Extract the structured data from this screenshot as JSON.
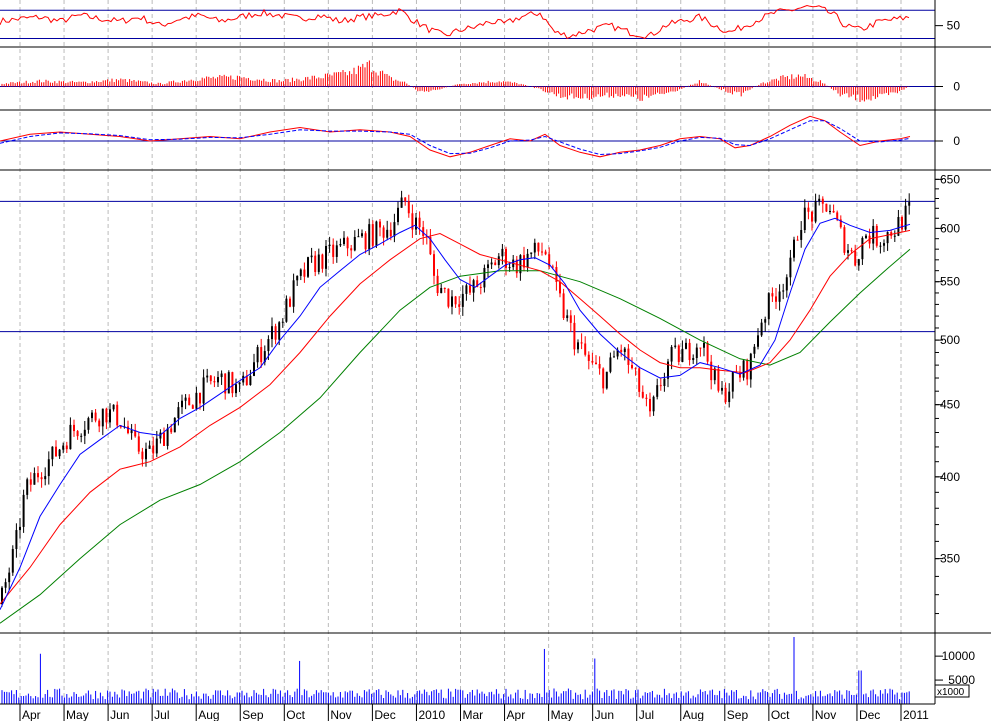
{
  "chart_data": {
    "type": "candlestick-multi-panel",
    "colors": {
      "up": "#000000",
      "down": "#ff0000",
      "ma_fast": "#0000ff",
      "ma_mid": "#ff0000",
      "ma_slow": "#008000",
      "volume": "#0000ff",
      "level_lines": "#0000a0",
      "grid": "#bbbbbb"
    },
    "x_labels": [
      "Apr",
      "May",
      "Jun",
      "Jul",
      "Aug",
      "Sep",
      "Oct",
      "Nov",
      "Dec",
      "2010",
      "Mar",
      "Apr",
      "May",
      "Jun",
      "Jul",
      "Aug",
      "Sep",
      "Oct",
      "Nov",
      "Dec",
      "2011"
    ],
    "price_panel": {
      "scale": "log",
      "ylim": [
        310,
        660
      ],
      "tick_labels": [
        "650",
        "600",
        "550",
        "500",
        "450",
        "400",
        "350"
      ],
      "tick_values": [
        650,
        600,
        550,
        500,
        450,
        400,
        350
      ],
      "level_lines": [
        627,
        507
      ],
      "close_path": [
        [
          0,
          325
        ],
        [
          15,
          355
        ],
        [
          25,
          390
        ],
        [
          40,
          405
        ],
        [
          55,
          415
        ],
        [
          70,
          430
        ],
        [
          90,
          440
        ],
        [
          105,
          445
        ],
        [
          120,
          440
        ],
        [
          135,
          420
        ],
        [
          150,
          415
        ],
        [
          165,
          430
        ],
        [
          180,
          445
        ],
        [
          200,
          460
        ],
        [
          220,
          470
        ],
        [
          240,
          460
        ],
        [
          260,
          490
        ],
        [
          280,
          515
        ],
        [
          295,
          545
        ],
        [
          310,
          565
        ],
        [
          330,
          575
        ],
        [
          350,
          585
        ],
        [
          370,
          593
        ],
        [
          390,
          602
        ],
        [
          405,
          627
        ],
        [
          415,
          605
        ],
        [
          425,
          595
        ],
        [
          435,
          550
        ],
        [
          450,
          535
        ],
        [
          470,
          540
        ],
        [
          485,
          555
        ],
        [
          500,
          575
        ],
        [
          515,
          565
        ],
        [
          530,
          575
        ],
        [
          545,
          580
        ],
        [
          555,
          545
        ],
        [
          565,
          520
        ],
        [
          575,
          500
        ],
        [
          590,
          480
        ],
        [
          605,
          470
        ],
        [
          620,
          495
        ],
        [
          635,
          470
        ],
        [
          650,
          440
        ],
        [
          660,
          465
        ],
        [
          670,
          485
        ],
        [
          685,
          490
        ],
        [
          700,
          500
        ],
        [
          710,
          480
        ],
        [
          720,
          455
        ],
        [
          735,
          470
        ],
        [
          750,
          480
        ],
        [
          760,
          515
        ],
        [
          775,
          540
        ],
        [
          790,
          560
        ],
        [
          800,
          610
        ],
        [
          815,
          615
        ],
        [
          828,
          625
        ],
        [
          840,
          595
        ],
        [
          855,
          570
        ],
        [
          865,
          595
        ],
        [
          880,
          590
        ],
        [
          895,
          600
        ],
        [
          910,
          618
        ]
      ],
      "ma_fast": [
        [
          0,
          322
        ],
        [
          20,
          345
        ],
        [
          40,
          375
        ],
        [
          60,
          395
        ],
        [
          80,
          415
        ],
        [
          100,
          425
        ],
        [
          120,
          435
        ],
        [
          140,
          430
        ],
        [
          160,
          428
        ],
        [
          180,
          440
        ],
        [
          200,
          448
        ],
        [
          220,
          458
        ],
        [
          240,
          468
        ],
        [
          260,
          478
        ],
        [
          280,
          500
        ],
        [
          300,
          520
        ],
        [
          320,
          545
        ],
        [
          340,
          560
        ],
        [
          360,
          575
        ],
        [
          380,
          585
        ],
        [
          400,
          596
        ],
        [
          415,
          603
        ],
        [
          430,
          590
        ],
        [
          445,
          570
        ],
        [
          460,
          552
        ],
        [
          475,
          545
        ],
        [
          490,
          555
        ],
        [
          505,
          565
        ],
        [
          520,
          570
        ],
        [
          535,
          572
        ],
        [
          550,
          565
        ],
        [
          565,
          548
        ],
        [
          580,
          525
        ],
        [
          600,
          505
        ],
        [
          620,
          490
        ],
        [
          640,
          478
        ],
        [
          660,
          470
        ],
        [
          680,
          472
        ],
        [
          700,
          482
        ],
        [
          720,
          478
        ],
        [
          740,
          473
        ],
        [
          760,
          480
        ],
        [
          775,
          500
        ],
        [
          790,
          540
        ],
        [
          805,
          580
        ],
        [
          820,
          605
        ],
        [
          835,
          610
        ],
        [
          850,
          603
        ],
        [
          870,
          596
        ],
        [
          890,
          598
        ],
        [
          910,
          604
        ]
      ],
      "ma_mid": [
        [
          0,
          325
        ],
        [
          30,
          345
        ],
        [
          60,
          370
        ],
        [
          90,
          390
        ],
        [
          120,
          405
        ],
        [
          150,
          410
        ],
        [
          180,
          420
        ],
        [
          210,
          435
        ],
        [
          240,
          448
        ],
        [
          270,
          465
        ],
        [
          300,
          490
        ],
        [
          330,
          520
        ],
        [
          360,
          548
        ],
        [
          390,
          570
        ],
        [
          420,
          590
        ],
        [
          440,
          595
        ],
        [
          460,
          585
        ],
        [
          480,
          575
        ],
        [
          500,
          570
        ],
        [
          520,
          565
        ],
        [
          540,
          560
        ],
        [
          560,
          550
        ],
        [
          580,
          535
        ],
        [
          600,
          520
        ],
        [
          620,
          505
        ],
        [
          640,
          492
        ],
        [
          660,
          482
        ],
        [
          680,
          478
        ],
        [
          700,
          478
        ],
        [
          720,
          476
        ],
        [
          745,
          474
        ],
        [
          770,
          482
        ],
        [
          790,
          500
        ],
        [
          810,
          525
        ],
        [
          830,
          555
        ],
        [
          850,
          575
        ],
        [
          870,
          590
        ],
        [
          890,
          594
        ],
        [
          910,
          598
        ]
      ],
      "ma_slow": [
        [
          0,
          315
        ],
        [
          40,
          330
        ],
        [
          80,
          350
        ],
        [
          120,
          370
        ],
        [
          160,
          385
        ],
        [
          200,
          395
        ],
        [
          240,
          410
        ],
        [
          280,
          430
        ],
        [
          320,
          455
        ],
        [
          360,
          490
        ],
        [
          400,
          525
        ],
        [
          430,
          545
        ],
        [
          460,
          555
        ],
        [
          500,
          560
        ],
        [
          540,
          560
        ],
        [
          580,
          550
        ],
        [
          620,
          535
        ],
        [
          660,
          518
        ],
        [
          700,
          500
        ],
        [
          740,
          485
        ],
        [
          770,
          480
        ],
        [
          800,
          490
        ],
        [
          830,
          515
        ],
        [
          860,
          540
        ],
        [
          885,
          560
        ],
        [
          910,
          580
        ]
      ]
    },
    "rsi_panel": {
      "tick_label": "50",
      "tick_value": 50,
      "ylim": [
        25,
        80
      ],
      "level_lines": [
        68,
        35
      ],
      "path": [
        [
          0,
          55
        ],
        [
          20,
          58
        ],
        [
          40,
          60
        ],
        [
          60,
          55
        ],
        [
          80,
          62
        ],
        [
          100,
          58
        ],
        [
          120,
          55
        ],
        [
          140,
          60
        ],
        [
          160,
          50
        ],
        [
          180,
          58
        ],
        [
          200,
          62
        ],
        [
          220,
          55
        ],
        [
          240,
          60
        ],
        [
          260,
          65
        ],
        [
          280,
          62
        ],
        [
          300,
          58
        ],
        [
          320,
          62
        ],
        [
          340,
          55
        ],
        [
          360,
          60
        ],
        [
          380,
          62
        ],
        [
          400,
          68
        ],
        [
          415,
          55
        ],
        [
          430,
          45
        ],
        [
          445,
          38
        ],
        [
          460,
          45
        ],
        [
          475,
          48
        ],
        [
          490,
          55
        ],
        [
          505,
          52
        ],
        [
          520,
          60
        ],
        [
          540,
          65
        ],
        [
          555,
          42
        ],
        [
          570,
          38
        ],
        [
          590,
          45
        ],
        [
          610,
          50
        ],
        [
          630,
          42
        ],
        [
          650,
          38
        ],
        [
          665,
          50
        ],
        [
          680,
          55
        ],
        [
          700,
          60
        ],
        [
          715,
          50
        ],
        [
          730,
          42
        ],
        [
          745,
          50
        ],
        [
          760,
          58
        ],
        [
          775,
          65
        ],
        [
          790,
          68
        ],
        [
          805,
          72
        ],
        [
          820,
          70
        ],
        [
          835,
          62
        ],
        [
          845,
          50
        ],
        [
          860,
          45
        ],
        [
          880,
          55
        ],
        [
          900,
          58
        ],
        [
          910,
          60
        ]
      ]
    },
    "histogram_panel": {
      "tick_label": "0",
      "tick_value": 0,
      "ylim": [
        -1,
        1
      ],
      "path": [
        [
          0,
          0.1
        ],
        [
          40,
          0.2
        ],
        [
          80,
          0.15
        ],
        [
          120,
          0.25
        ],
        [
          160,
          0.1
        ],
        [
          200,
          0.3
        ],
        [
          240,
          0.35
        ],
        [
          280,
          0.2
        ],
        [
          320,
          0.35
        ],
        [
          350,
          0.5
        ],
        [
          370,
          0.8
        ],
        [
          390,
          0.3
        ],
        [
          405,
          0.15
        ],
        [
          420,
          -0.2
        ],
        [
          440,
          -0.1
        ],
        [
          460,
          0.1
        ],
        [
          480,
          0.15
        ],
        [
          500,
          0.2
        ],
        [
          520,
          0.1
        ],
        [
          540,
          -0.1
        ],
        [
          560,
          -0.35
        ],
        [
          580,
          -0.4
        ],
        [
          600,
          -0.35
        ],
        [
          620,
          -0.3
        ],
        [
          640,
          -0.45
        ],
        [
          660,
          -0.3
        ],
        [
          680,
          -0.1
        ],
        [
          700,
          0.2
        ],
        [
          720,
          -0.1
        ],
        [
          740,
          -0.3
        ],
        [
          760,
          0.1
        ],
        [
          780,
          0.3
        ],
        [
          800,
          0.4
        ],
        [
          820,
          0.2
        ],
        [
          840,
          -0.3
        ],
        [
          860,
          -0.45
        ],
        [
          880,
          -0.4
        ],
        [
          900,
          -0.2
        ],
        [
          910,
          0.05
        ]
      ]
    },
    "oscillator_panel": {
      "tick_label": "0",
      "tick_value": 0,
      "ylim": [
        -1,
        1
      ],
      "main": [
        [
          0,
          0
        ],
        [
          30,
          0.15
        ],
        [
          60,
          0.2
        ],
        [
          90,
          0.15
        ],
        [
          120,
          0.1
        ],
        [
          150,
          0
        ],
        [
          180,
          0.05
        ],
        [
          210,
          0.1
        ],
        [
          240,
          0.05
        ],
        [
          270,
          0.2
        ],
        [
          300,
          0.3
        ],
        [
          330,
          0.2
        ],
        [
          360,
          0.25
        ],
        [
          390,
          0.2
        ],
        [
          410,
          0.1
        ],
        [
          430,
          -0.2
        ],
        [
          450,
          -0.35
        ],
        [
          470,
          -0.25
        ],
        [
          490,
          -0.1
        ],
        [
          510,
          0.05
        ],
        [
          530,
          0
        ],
        [
          545,
          0.15
        ],
        [
          560,
          -0.1
        ],
        [
          580,
          -0.25
        ],
        [
          600,
          -0.35
        ],
        [
          620,
          -0.25
        ],
        [
          640,
          -0.2
        ],
        [
          660,
          -0.1
        ],
        [
          680,
          0.05
        ],
        [
          700,
          0.1
        ],
        [
          720,
          0.05
        ],
        [
          735,
          -0.15
        ],
        [
          750,
          -0.1
        ],
        [
          770,
          0.1
        ],
        [
          790,
          0.35
        ],
        [
          810,
          0.55
        ],
        [
          825,
          0.45
        ],
        [
          840,
          0.2
        ],
        [
          860,
          -0.1
        ],
        [
          880,
          0
        ],
        [
          900,
          0.05
        ],
        [
          910,
          0.1
        ]
      ],
      "signal": [
        [
          0,
          -0.05
        ],
        [
          30,
          0.1
        ],
        [
          60,
          0.18
        ],
        [
          90,
          0.16
        ],
        [
          120,
          0.12
        ],
        [
          150,
          0.03
        ],
        [
          180,
          0.04
        ],
        [
          210,
          0.08
        ],
        [
          240,
          0.07
        ],
        [
          270,
          0.15
        ],
        [
          300,
          0.25
        ],
        [
          330,
          0.22
        ],
        [
          360,
          0.22
        ],
        [
          390,
          0.2
        ],
        [
          410,
          0.15
        ],
        [
          430,
          -0.1
        ],
        [
          450,
          -0.28
        ],
        [
          470,
          -0.27
        ],
        [
          490,
          -0.15
        ],
        [
          510,
          0
        ],
        [
          530,
          0.02
        ],
        [
          545,
          0.1
        ],
        [
          560,
          -0.02
        ],
        [
          580,
          -0.18
        ],
        [
          600,
          -0.3
        ],
        [
          620,
          -0.28
        ],
        [
          640,
          -0.22
        ],
        [
          660,
          -0.14
        ],
        [
          680,
          0
        ],
        [
          700,
          0.08
        ],
        [
          720,
          0.06
        ],
        [
          735,
          -0.08
        ],
        [
          750,
          -0.1
        ],
        [
          770,
          0.05
        ],
        [
          790,
          0.25
        ],
        [
          810,
          0.45
        ],
        [
          825,
          0.45
        ],
        [
          840,
          0.28
        ],
        [
          860,
          0
        ],
        [
          880,
          -0.02
        ],
        [
          900,
          0.02
        ],
        [
          910,
          0.06
        ]
      ]
    },
    "volume_panel": {
      "tick_labels": [
        "10000",
        "5000"
      ],
      "tick_values": [
        10000,
        5000
      ],
      "ylim": [
        0,
        14000
      ],
      "multiplier_label": "x1000",
      "spikes": [
        [
          40,
          10500
        ],
        [
          300,
          9000
        ],
        [
          545,
          11500
        ],
        [
          595,
          9500
        ],
        [
          795,
          14000
        ],
        [
          860,
          7000
        ]
      ],
      "base": 2500
    }
  }
}
